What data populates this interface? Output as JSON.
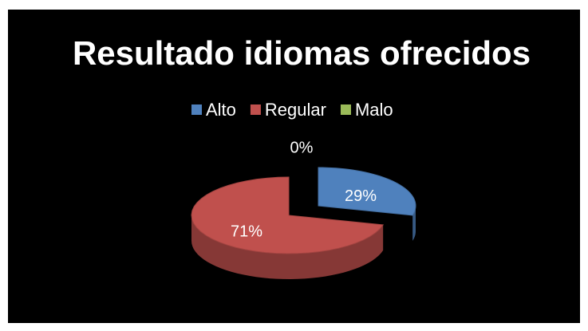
{
  "chart_data": {
    "type": "pie",
    "title": "Resultado idiomas ofrecidos",
    "categories": [
      "Alto",
      "Regular",
      "Malo"
    ],
    "values": [
      29,
      71,
      0
    ],
    "value_labels": [
      "29%",
      "71%",
      "0%"
    ],
    "colors": [
      "#4f81bd",
      "#c0504d",
      "#9bbb59"
    ],
    "legend": "top"
  }
}
